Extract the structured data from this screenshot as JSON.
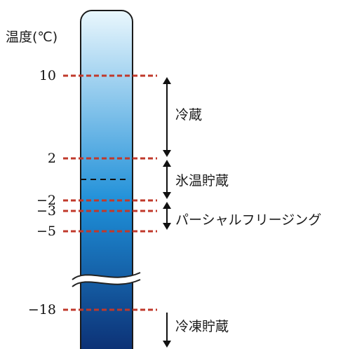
{
  "axis_title": "温度(℃)",
  "ticks": [
    {
      "label": "10",
      "value": 10
    },
    {
      "label": "2",
      "value": 2
    },
    {
      "label": "−2",
      "value": -2
    },
    {
      "label": "−3",
      "value": -3
    },
    {
      "label": "−5",
      "value": -5
    },
    {
      "label": "−18",
      "value": -18
    }
  ],
  "zones": [
    {
      "label": "冷蔵",
      "from": 10,
      "to": 2
    },
    {
      "label": "氷温貯蔵",
      "from": 2,
      "to": -2
    },
    {
      "label": "パーシャルフリージング",
      "from": -2,
      "to": -5
    },
    {
      "label": "冷凍貯蔵",
      "from": -18,
      "to": null
    }
  ],
  "colors": {
    "column_top": "#eaf7fd",
    "column_mid": "#1e8fd8",
    "column_bottom": "#0b2a6e",
    "threshold_line": "#c0392b",
    "arrow": "#111111"
  }
}
